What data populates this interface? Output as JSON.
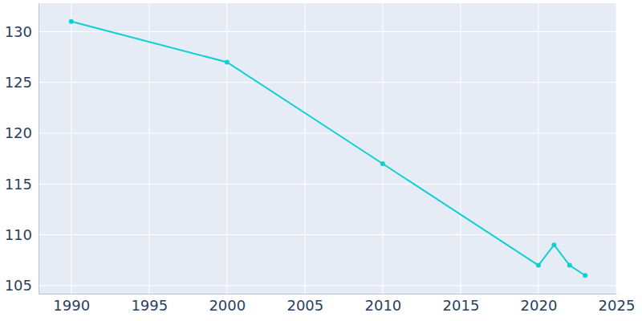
{
  "chart_data": {
    "type": "line",
    "x": [
      1990,
      2000,
      2010,
      2020,
      2021,
      2022,
      2023
    ],
    "values": [
      131,
      127,
      117,
      107,
      109,
      107,
      106
    ],
    "color": "#0fcfd3",
    "marker": "circle",
    "xlim": [
      1987.9,
      2025
    ],
    "xticks": [
      1990,
      1995,
      2000,
      2005,
      2010,
      2015,
      2020,
      2025
    ],
    "ylim": [
      104.2,
      132.8
    ],
    "yticks": [
      105,
      110,
      115,
      120,
      125,
      130
    ],
    "grid": true
  }
}
